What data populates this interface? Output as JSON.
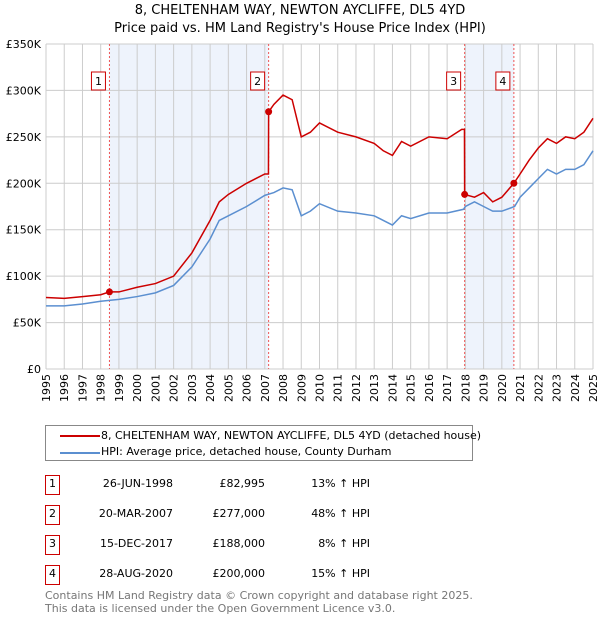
{
  "title": "8, CHELTENHAM WAY, NEWTON AYCLIFFE, DL5 4YD",
  "subtitle": "Price paid vs. HM Land Registry's House Price Index (HPI)",
  "chart_data": {
    "type": "line",
    "title": "8, CHELTENHAM WAY, NEWTON AYCLIFFE, DL5 4YD",
    "xlim": [
      1995,
      2025
    ],
    "ylim": [
      0,
      350000
    ],
    "x_ticks": [
      "1995",
      "1996",
      "1997",
      "1998",
      "1999",
      "2000",
      "2001",
      "2002",
      "2003",
      "2004",
      "2005",
      "2006",
      "2007",
      "2008",
      "2009",
      "2010",
      "2011",
      "2012",
      "2013",
      "2014",
      "2015",
      "2016",
      "2017",
      "2018",
      "2019",
      "2020",
      "2021",
      "2022",
      "2023",
      "2024",
      "2025"
    ],
    "y_ticks": [
      {
        "v": 0,
        "label": "£0"
      },
      {
        "v": 50000,
        "label": "£50K"
      },
      {
        "v": 100000,
        "label": "£100K"
      },
      {
        "v": 150000,
        "label": "£150K"
      },
      {
        "v": 200000,
        "label": "£200K"
      },
      {
        "v": 250000,
        "label": "£250K"
      },
      {
        "v": 300000,
        "label": "£300K"
      },
      {
        "v": 350000,
        "label": "£350K"
      }
    ],
    "grid": true,
    "shaded_ranges": [
      [
        1998.48,
        2007.21
      ],
      [
        2017.96,
        2020.66
      ]
    ],
    "series": [
      {
        "name": "8, CHELTENHAM WAY, NEWTON AYCLIFFE, DL5 4YD (detached house)",
        "color": "#cc0000",
        "x": [
          1995,
          1996,
          1997,
          1998,
          1998.48,
          1999,
          2000,
          2001,
          2002,
          2003,
          2004,
          2004.5,
          2005,
          2006,
          2007,
          2007.2,
          2007.21,
          2007.5,
          2008,
          2008.5,
          2009,
          2009.5,
          2010,
          2011,
          2012,
          2013,
          2013.5,
          2014,
          2014.5,
          2015,
          2016,
          2017,
          2017.8,
          2017.95,
          2017.96,
          2018.5,
          2019,
          2019.5,
          2020,
          2020.66,
          2021,
          2021.5,
          2022,
          2022.5,
          2023,
          2023.5,
          2024,
          2024.5,
          2025
        ],
        "y": [
          77000,
          76000,
          78000,
          80000,
          82995,
          83000,
          88000,
          92000,
          100000,
          125000,
          160000,
          180000,
          188000,
          200000,
          210000,
          210000,
          277000,
          285000,
          295000,
          290000,
          250000,
          255000,
          265000,
          255000,
          250000,
          243000,
          235000,
          230000,
          245000,
          240000,
          250000,
          248000,
          258000,
          258000,
          188000,
          185000,
          190000,
          180000,
          185000,
          200000,
          210000,
          225000,
          238000,
          248000,
          243000,
          250000,
          248000,
          255000,
          270000
        ]
      },
      {
        "name": "HPI: Average price, detached house, County Durham",
        "color": "#5b8fd0",
        "x": [
          1995,
          1996,
          1997,
          1998,
          1999,
          2000,
          2001,
          2002,
          2003,
          2004,
          2004.5,
          2005,
          2006,
          2007,
          2007.5,
          2008,
          2008.5,
          2009,
          2009.5,
          2010,
          2011,
          2012,
          2013,
          2013.5,
          2014,
          2014.5,
          2015,
          2016,
          2017,
          2017.9,
          2018,
          2018.5,
          2019,
          2019.5,
          2020,
          2020.7,
          2021,
          2021.5,
          2022,
          2022.5,
          2023,
          2023.5,
          2024,
          2024.5,
          2025
        ],
        "y": [
          68000,
          68000,
          70000,
          73000,
          75000,
          78000,
          82000,
          90000,
          110000,
          140000,
          160000,
          165000,
          175000,
          187000,
          190000,
          195000,
          193000,
          165000,
          170000,
          178000,
          170000,
          168000,
          165000,
          160000,
          155000,
          165000,
          162000,
          168000,
          168000,
          172000,
          175000,
          180000,
          175000,
          170000,
          170000,
          175000,
          185000,
          195000,
          205000,
          215000,
          210000,
          215000,
          215000,
          220000,
          235000
        ]
      }
    ],
    "annotations": [
      {
        "label": "1",
        "x": 1998.48,
        "y": 82995
      },
      {
        "label": "2",
        "x": 2007.21,
        "y": 277000
      },
      {
        "label": "3",
        "x": 2017.96,
        "y": 188000
      },
      {
        "label": "4",
        "x": 2020.66,
        "y": 200000
      }
    ]
  },
  "legend": {
    "items": [
      "8, CHELTENHAM WAY, NEWTON AYCLIFFE, DL5 4YD (detached house)",
      "HPI: Average price, detached house, County Durham"
    ]
  },
  "sales": [
    {
      "num": "1",
      "date": "26-JUN-1998",
      "price": "£82,995",
      "hpi": "13% ↑ HPI"
    },
    {
      "num": "2",
      "date": "20-MAR-2007",
      "price": "£277,000",
      "hpi": "48% ↑ HPI"
    },
    {
      "num": "3",
      "date": "15-DEC-2017",
      "price": "£188,000",
      "hpi": "8% ↑ HPI"
    },
    {
      "num": "4",
      "date": "28-AUG-2020",
      "price": "£200,000",
      "hpi": "15% ↑ HPI"
    }
  ],
  "footer": {
    "line1": "Contains HM Land Registry data © Crown copyright and database right 2025.",
    "line2": "This data is licensed under the Open Government Licence v3.0."
  }
}
